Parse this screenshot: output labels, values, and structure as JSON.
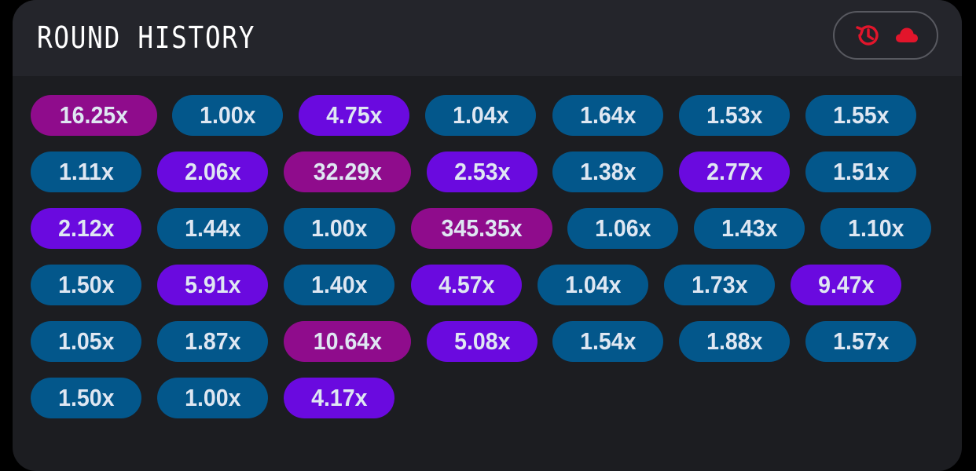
{
  "header": {
    "title": "ROUND HISTORY"
  },
  "history_button": {
    "icons": [
      "history-icon",
      "cloud-icon"
    ],
    "accent_color": "#e2152b"
  },
  "colors": {
    "blue": "#03578b",
    "purple": "#6a0adf",
    "magenta": "#8f0c8c"
  },
  "rows": [
    [
      {
        "label": "16.25x",
        "tier": "magenta"
      },
      {
        "label": "1.00x",
        "tier": "blue"
      },
      {
        "label": "4.75x",
        "tier": "purple"
      },
      {
        "label": "1.04x",
        "tier": "blue"
      },
      {
        "label": "1.64x",
        "tier": "blue"
      },
      {
        "label": "1.53x",
        "tier": "blue"
      },
      {
        "label": "1.55x",
        "tier": "blue"
      }
    ],
    [
      {
        "label": "1.11x",
        "tier": "blue"
      },
      {
        "label": "2.06x",
        "tier": "purple"
      },
      {
        "label": "32.29x",
        "tier": "magenta"
      },
      {
        "label": "2.53x",
        "tier": "purple"
      },
      {
        "label": "1.38x",
        "tier": "blue"
      },
      {
        "label": "2.77x",
        "tier": "purple"
      },
      {
        "label": "1.51x",
        "tier": "blue"
      }
    ],
    [
      {
        "label": "2.12x",
        "tier": "purple"
      },
      {
        "label": "1.44x",
        "tier": "blue"
      },
      {
        "label": "1.00x",
        "tier": "blue"
      },
      {
        "label": "345.35x",
        "tier": "magenta"
      },
      {
        "label": "1.06x",
        "tier": "blue"
      },
      {
        "label": "1.43x",
        "tier": "blue"
      },
      {
        "label": "1.10x",
        "tier": "blue"
      }
    ],
    [
      {
        "label": "1.50x",
        "tier": "blue"
      },
      {
        "label": "5.91x",
        "tier": "purple"
      },
      {
        "label": "1.40x",
        "tier": "blue"
      },
      {
        "label": "4.57x",
        "tier": "purple"
      },
      {
        "label": "1.04x",
        "tier": "blue"
      },
      {
        "label": "1.73x",
        "tier": "blue"
      },
      {
        "label": "9.47x",
        "tier": "purple"
      }
    ],
    [
      {
        "label": "1.05x",
        "tier": "blue"
      },
      {
        "label": "1.87x",
        "tier": "blue"
      },
      {
        "label": "10.64x",
        "tier": "magenta"
      },
      {
        "label": "5.08x",
        "tier": "purple"
      },
      {
        "label": "1.54x",
        "tier": "blue"
      },
      {
        "label": "1.88x",
        "tier": "blue"
      },
      {
        "label": "1.57x",
        "tier": "blue"
      }
    ],
    [
      {
        "label": "1.50x",
        "tier": "blue"
      },
      {
        "label": "1.00x",
        "tier": "blue"
      },
      {
        "label": "4.17x",
        "tier": "purple"
      }
    ]
  ]
}
